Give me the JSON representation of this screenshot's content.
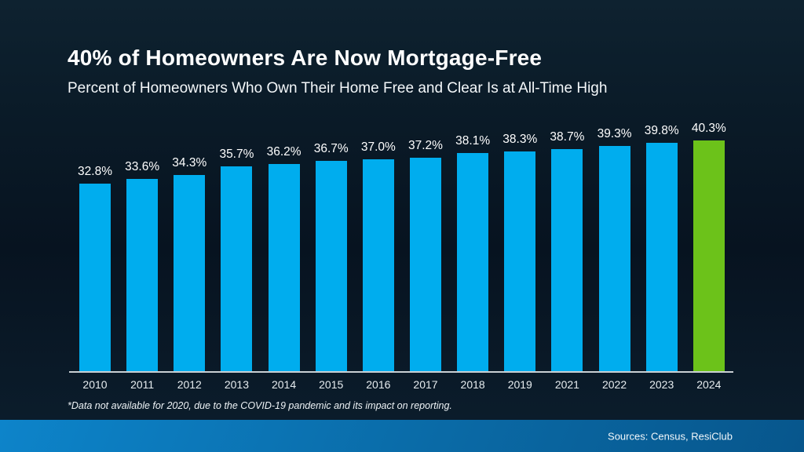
{
  "page": {
    "title": "40% of Homeowners Are Now Mortgage-Free",
    "subtitle": "Percent of Homeowners Who Own Their Home Free and Clear Is at All-Time High",
    "footnote": "*Data not available for 2020, due to the COVID-19 pandemic and its impact on reporting.",
    "source": "Sources: Census, ResiClub"
  },
  "colors": {
    "bar": "#00ADEE",
    "highlight": "#6CC21A",
    "axis_line": "#C9CFD3",
    "background": "#0A1A27",
    "footer_gradient_start": "#0D84CA",
    "footer_gradient_end": "#07568C",
    "text": "#FFFFFF"
  },
  "chart_data": {
    "type": "bar",
    "title": "40% of Homeowners Are Now Mortgage-Free",
    "subtitle": "Percent of Homeowners Who Own Their Home Free and Clear Is at All-Time High",
    "categories": [
      "2010",
      "2011",
      "2012",
      "2013",
      "2014",
      "2015",
      "2016",
      "2017",
      "2018",
      "2019",
      "2021",
      "2022",
      "2023",
      "2024"
    ],
    "values": [
      32.8,
      33.6,
      34.3,
      35.7,
      36.2,
      36.7,
      37.0,
      37.2,
      38.1,
      38.3,
      38.7,
      39.3,
      39.8,
      40.3
    ],
    "value_labels": [
      "32.8%",
      "33.6%",
      "34.3%",
      "35.7%",
      "36.2%",
      "36.7%",
      "37.0%",
      "37.2%",
      "38.1%",
      "38.3%",
      "38.7%",
      "39.3%",
      "39.8%",
      "40.3%"
    ],
    "highlight_index": 13,
    "xlabel": "",
    "ylabel": "",
    "ylim": [
      0,
      41.5
    ],
    "grid": false,
    "legend": false,
    "annotations": [
      "*Data not available for 2020, due to the COVID-19 pandemic and its impact on reporting."
    ]
  }
}
